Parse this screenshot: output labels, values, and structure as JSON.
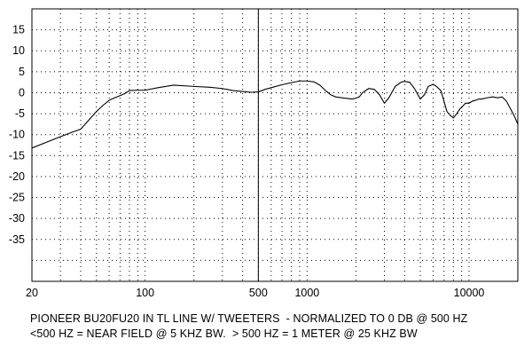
{
  "chart_data": {
    "type": "line",
    "xscale": "log",
    "xlim": [
      20,
      20000
    ],
    "ylim": [
      -45,
      20
    ],
    "y_ticks": [
      15,
      10,
      5,
      0,
      -5,
      -10,
      -15,
      -20,
      -25,
      -30,
      -35
    ],
    "x_ticks": [
      {
        "value": 20,
        "label": "20"
      },
      {
        "value": 100,
        "label": "100"
      },
      {
        "value": 500,
        "label": "500"
      },
      {
        "value": 1000,
        "label": "1000"
      },
      {
        "value": 10000,
        "label": "10000"
      }
    ],
    "x_grid": [
      30,
      40,
      50,
      60,
      70,
      80,
      90,
      100,
      200,
      300,
      400,
      500,
      600,
      700,
      800,
      900,
      1000,
      2000,
      3000,
      4000,
      5000,
      6000,
      7000,
      8000,
      9000,
      10000
    ],
    "y_grid": [
      15,
      10,
      5,
      0,
      -5,
      -10,
      -15,
      -20,
      -25,
      -30,
      -35,
      -40
    ],
    "reference_line_x": 500,
    "grid": true,
    "series": [
      {
        "x": [
          20,
          25,
          30,
          35,
          40,
          45,
          50,
          55,
          60,
          65,
          70,
          75,
          80,
          90,
          100,
          120,
          150,
          200,
          250,
          300,
          350,
          400,
          450,
          500,
          550,
          600,
          700,
          800,
          900,
          1000,
          1100,
          1200,
          1300,
          1400,
          1500,
          1700,
          1900,
          2000,
          2100,
          2200,
          2400,
          2600,
          2800,
          3000,
          3200,
          3500,
          3800,
          4000,
          4300,
          4600,
          5000,
          5300,
          5600,
          6000,
          6300,
          6700,
          7000,
          7300,
          7700,
          8000,
          8400,
          8800,
          9000,
          9500,
          10000,
          10500,
          11000,
          11500,
          12000,
          13000,
          14000,
          15000,
          16000,
          17000,
          18000,
          19000,
          20000
        ],
        "y": [
          -13.2,
          -11.7,
          -10.5,
          -9.5,
          -8.7,
          -6.5,
          -4.5,
          -3.0,
          -1.8,
          -1.2,
          -0.7,
          -0.2,
          0.5,
          0.6,
          0.6,
          1.2,
          1.8,
          1.5,
          1.3,
          1.0,
          0.5,
          0.3,
          0.1,
          0.2,
          0.8,
          1.2,
          1.9,
          2.4,
          2.8,
          2.8,
          2.6,
          1.8,
          0.5,
          -0.5,
          -1.0,
          -1.3,
          -1.5,
          -1.3,
          -1.0,
          0.0,
          1.0,
          0.8,
          -0.5,
          -2.5,
          -1.2,
          1.5,
          2.5,
          2.7,
          2.5,
          1.0,
          -1.5,
          -0.5,
          1.5,
          2.0,
          1.5,
          0.5,
          -2.0,
          -4.5,
          -5.5,
          -6.0,
          -5.0,
          -3.8,
          -3.5,
          -2.5,
          -2.5,
          -2.0,
          -1.8,
          -1.5,
          -1.5,
          -1.2,
          -1.0,
          -1.2,
          -1.0,
          -2.0,
          -3.8,
          -5.5,
          -7.5
        ]
      }
    ],
    "caption_line1": "PIONEER BU20FU20 IN TL LINE W/ TWEETERS  - NORMALIZED TO 0 DB @ 500 HZ",
    "caption_line2": "<500 HZ = NEAR FIELD @ 5 KHZ BW.  > 500 HZ = 1 METER @ 25 KHZ BW"
  }
}
